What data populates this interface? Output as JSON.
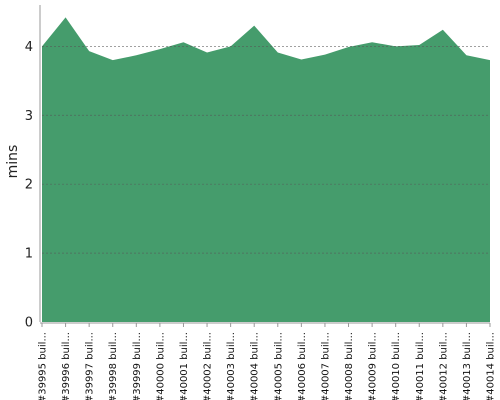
{
  "chart_data": {
    "type": "area",
    "ylabel": "mins",
    "xlabel": "",
    "ylim": [
      0,
      4.6
    ],
    "yticks": [
      0,
      1,
      2,
      3,
      4
    ],
    "grid": "horizontal-dashed",
    "categories": [
      "#39995 buil...",
      "#39996 buil...",
      "#39997 buil...",
      "#39998 buil...",
      "#39999 buil...",
      "#40000 buil...",
      "#40001 buil...",
      "#40002 buil...",
      "#40003 buil...",
      "#40004 buil...",
      "#40005 buil...",
      "#40006 buil...",
      "#40007 buil...",
      "#40008 buil...",
      "#40009 buil...",
      "#40010 buil...",
      "#40011 buil...",
      "#40012 buil...",
      "#40013 buil...",
      "#40014 buil..."
    ],
    "series": [
      {
        "values": [
          4.0,
          4.42,
          3.93,
          3.8,
          3.87,
          3.96,
          4.06,
          3.91,
          4.0,
          4.3,
          3.91,
          3.81,
          3.88,
          3.99,
          4.06,
          4.0,
          4.02,
          4.24,
          3.87,
          3.8
        ],
        "color": "#459c6c"
      }
    ],
    "colors": {
      "fill": "#459c6c",
      "axis": "#999999",
      "grid": "#555555",
      "text": "#222222"
    }
  }
}
